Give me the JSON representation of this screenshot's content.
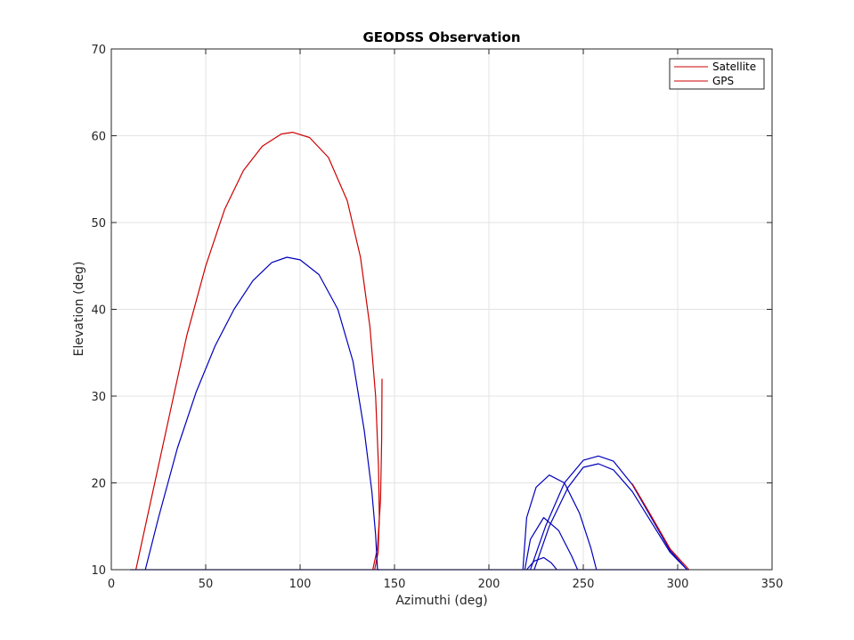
{
  "chart_data": {
    "type": "line",
    "title": "GEODSS Observation",
    "xlabel": "Azimuthi (deg)",
    "ylabel": "Elevation (deg)",
    "xlim": [
      0,
      350
    ],
    "ylim": [
      10,
      70
    ],
    "xticks": [
      0,
      50,
      100,
      150,
      200,
      250,
      300,
      350
    ],
    "yticks": [
      10,
      20,
      30,
      40,
      50,
      60,
      70
    ],
    "grid": true,
    "legend_position": "top-right",
    "legend": [
      {
        "label": "Satellite",
        "color": "#cc0000"
      },
      {
        "label": "GPS",
        "color": "#cc0000"
      }
    ],
    "series": [
      {
        "color": "#cc0000",
        "points": [
          [
            13,
            10
          ],
          [
            20,
            17
          ],
          [
            30,
            27
          ],
          [
            40,
            37
          ],
          [
            50,
            45
          ],
          [
            60,
            51.5
          ],
          [
            70,
            56
          ],
          [
            80,
            58.8
          ],
          [
            90,
            60.2
          ],
          [
            96,
            60.4
          ],
          [
            105,
            59.8
          ],
          [
            115,
            57.5
          ],
          [
            125,
            52.5
          ],
          [
            132,
            46
          ],
          [
            137,
            38
          ],
          [
            140,
            30
          ],
          [
            141.5,
            22
          ],
          [
            142,
            16
          ],
          [
            141.3,
            12
          ],
          [
            139.5,
            10
          ]
        ]
      },
      {
        "color": "#cc0000",
        "points": [
          [
            138.5,
            10
          ],
          [
            141,
            12.5
          ],
          [
            142.6,
            18
          ],
          [
            143.2,
            25
          ],
          [
            143.4,
            32
          ]
        ]
      },
      {
        "color": "#0000bb",
        "points": [
          [
            18,
            10
          ],
          [
            25,
            16
          ],
          [
            35,
            24
          ],
          [
            45,
            30.5
          ],
          [
            55,
            35.8
          ],
          [
            65,
            40
          ],
          [
            75,
            43.3
          ],
          [
            85,
            45.4
          ],
          [
            93,
            46
          ],
          [
            100,
            45.7
          ],
          [
            110,
            44
          ],
          [
            120,
            40
          ],
          [
            128,
            34
          ],
          [
            134,
            26
          ],
          [
            138,
            19
          ],
          [
            140,
            14
          ],
          [
            141,
            10
          ]
        ]
      },
      {
        "color": "#0000bb",
        "points": [
          [
            10,
            10
          ],
          [
            142,
            10
          ]
        ]
      },
      {
        "color": "#0000bb",
        "points": [
          [
            141,
            10
          ],
          [
            218,
            10
          ]
        ]
      },
      {
        "color": "#0000bb",
        "points": [
          [
            218,
            10
          ],
          [
            220,
            16
          ],
          [
            225,
            19.5
          ],
          [
            232,
            20.9
          ],
          [
            240,
            20
          ],
          [
            248,
            16.5
          ],
          [
            254,
            12.5
          ],
          [
            257,
            10
          ]
        ]
      },
      {
        "color": "#0000bb",
        "points": [
          [
            219,
            10
          ],
          [
            222,
            13.5
          ],
          [
            229,
            16
          ],
          [
            237,
            14.5
          ],
          [
            244,
            11.5
          ],
          [
            247,
            10
          ]
        ]
      },
      {
        "color": "#0000bb",
        "points": [
          [
            220,
            10
          ],
          [
            224,
            11
          ],
          [
            229,
            11.4
          ],
          [
            233,
            10.8
          ],
          [
            236,
            10
          ]
        ]
      },
      {
        "color": "#0000bb",
        "points": [
          [
            224,
            10
          ],
          [
            232,
            15
          ],
          [
            242,
            19.5
          ],
          [
            250,
            21.8
          ],
          [
            258,
            22.2
          ],
          [
            266,
            21.5
          ],
          [
            276,
            19
          ],
          [
            286,
            15.5
          ],
          [
            296,
            12
          ],
          [
            305,
            10
          ]
        ]
      },
      {
        "color": "#0000bb",
        "points": [
          [
            222,
            10
          ],
          [
            230,
            15
          ],
          [
            240,
            20
          ],
          [
            250,
            22.6
          ],
          [
            258,
            23.1
          ],
          [
            266,
            22.5
          ],
          [
            276,
            19.8
          ],
          [
            286,
            16
          ],
          [
            296,
            12.2
          ],
          [
            305,
            10
          ]
        ]
      },
      {
        "color": "#cc0000",
        "points": [
          [
            276,
            19.9
          ],
          [
            286,
            16.2
          ],
          [
            296,
            12.4
          ],
          [
            306,
            10
          ]
        ]
      },
      {
        "color": "#0000bb",
        "points": [
          [
            218,
            10
          ],
          [
            306,
            10
          ]
        ]
      }
    ]
  }
}
